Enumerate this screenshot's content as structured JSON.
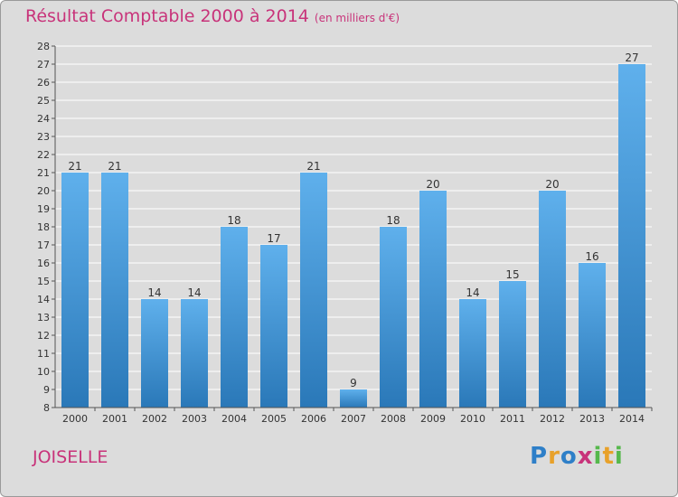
{
  "header": {
    "title": "Résultat Comptable 2000 à 2014",
    "subtitle": "(en milliers d'€)"
  },
  "footer": {
    "commune": "JOISELLE",
    "logo_letters": [
      "P",
      "r",
      "o",
      "x",
      "i",
      "t",
      "i"
    ],
    "logo_colors": [
      "#2e7fc8",
      "#e8a12a",
      "#2e7fc8",
      "#c8337a",
      "#56b84c",
      "#e8a12a",
      "#56b84c"
    ]
  },
  "chart_data": {
    "type": "bar",
    "title": "Résultat Comptable 2000 à 2014",
    "subtitle": "(en milliers d'€)",
    "categories": [
      "2000",
      "2001",
      "2002",
      "2003",
      "2004",
      "2005",
      "2006",
      "2007",
      "2008",
      "2009",
      "2010",
      "2011",
      "2012",
      "2013",
      "2014"
    ],
    "values": [
      21,
      21,
      14,
      14,
      18,
      17,
      21,
      9,
      18,
      20,
      14,
      15,
      20,
      16,
      27
    ],
    "ylim": [
      8,
      28
    ],
    "yticks": [
      8,
      9,
      10,
      11,
      12,
      13,
      14,
      15,
      16,
      17,
      18,
      19,
      20,
      21,
      22,
      23,
      24,
      25,
      26,
      27,
      28
    ],
    "xlabel": "",
    "ylabel": "",
    "grid": true,
    "colors": {
      "bar_top": "#5fb0ec",
      "bar_bottom": "#2a78b8",
      "grid": "#ffffff",
      "axis": "#555555",
      "text": "#333333"
    }
  }
}
